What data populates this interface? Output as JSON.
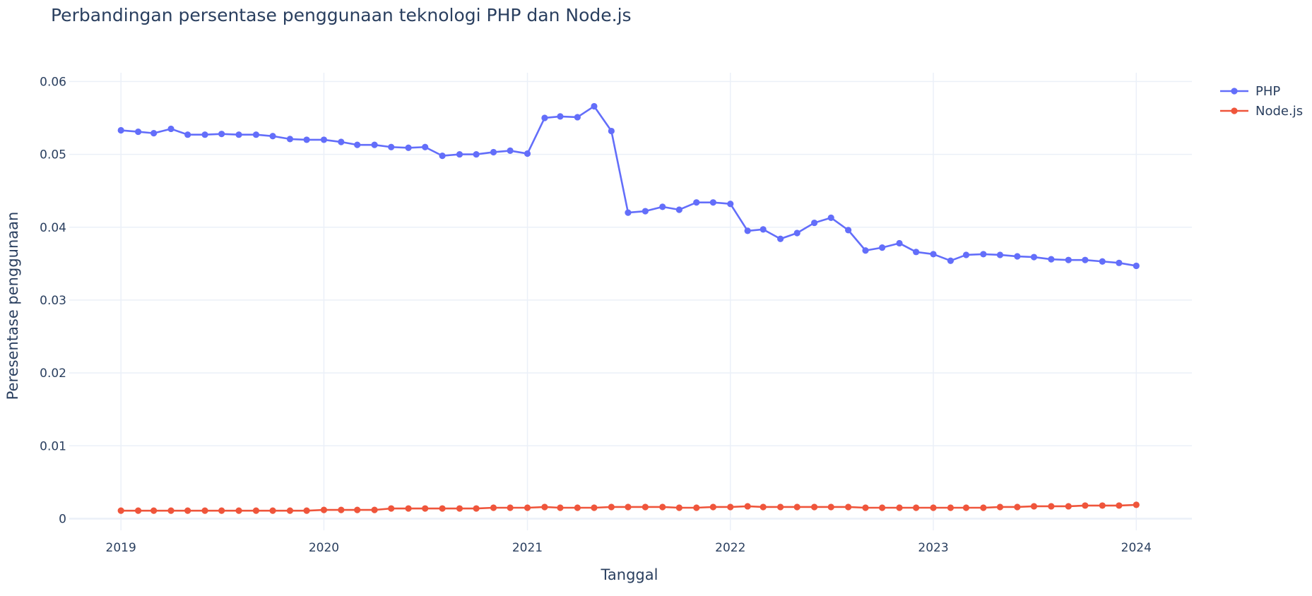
{
  "chart_data": {
    "type": "line",
    "title": "Perbandingan persentase penggunaan teknologi PHP dan Node.js",
    "xlabel": "Tanggal",
    "ylabel": "Peresentase penggunaan",
    "xlim": [
      "2018-09-30",
      "2024-04-10"
    ],
    "ylim": [
      -0.0016,
      0.0612
    ],
    "x_ticks": [
      "2019-01-01",
      "2020-01-01",
      "2021-01-01",
      "2022-01-01",
      "2023-01-01",
      "2024-01-01"
    ],
    "x_tick_labels": [
      "2019",
      "2020",
      "2021",
      "2022",
      "2023",
      "2024"
    ],
    "y_ticks": [
      0,
      0.01,
      0.02,
      0.03,
      0.04,
      0.05,
      0.06
    ],
    "y_tick_labels": [
      "0",
      "0.01",
      "0.02",
      "0.03",
      "0.04",
      "0.05",
      "0.06"
    ],
    "grid": true,
    "legend_position": "top-right",
    "x": [
      "2019-01-01",
      "2019-02-01",
      "2019-03-01",
      "2019-04-01",
      "2019-05-01",
      "2019-06-01",
      "2019-07-01",
      "2019-08-01",
      "2019-09-01",
      "2019-10-01",
      "2019-11-01",
      "2019-12-01",
      "2020-01-01",
      "2020-02-01",
      "2020-03-01",
      "2020-04-01",
      "2020-05-01",
      "2020-06-01",
      "2020-07-01",
      "2020-08-01",
      "2020-09-01",
      "2020-10-01",
      "2020-11-01",
      "2020-12-01",
      "2021-01-01",
      "2021-02-01",
      "2021-03-01",
      "2021-04-01",
      "2021-05-01",
      "2021-06-01",
      "2021-07-01",
      "2021-08-01",
      "2021-09-01",
      "2021-10-01",
      "2021-11-01",
      "2021-12-01",
      "2022-01-01",
      "2022-02-01",
      "2022-03-01",
      "2022-04-01",
      "2022-05-01",
      "2022-06-01",
      "2022-07-01",
      "2022-08-01",
      "2022-09-01",
      "2022-10-01",
      "2022-11-01",
      "2022-12-01",
      "2023-01-01",
      "2023-02-01",
      "2023-03-01",
      "2023-04-01",
      "2023-05-01",
      "2023-06-01",
      "2023-07-01",
      "2023-08-01",
      "2023-09-01",
      "2023-10-01",
      "2023-11-01",
      "2023-12-01",
      "2024-01-01"
    ],
    "series": [
      {
        "name": "PHP",
        "color": "#636efa",
        "values": [
          0.0533,
          0.0531,
          0.0529,
          0.0535,
          0.0527,
          0.0527,
          0.0528,
          0.0527,
          0.0527,
          0.0525,
          0.0521,
          0.052,
          0.052,
          0.0517,
          0.0513,
          0.0513,
          0.051,
          0.0509,
          0.051,
          0.0498,
          0.05,
          0.05,
          0.0503,
          0.0505,
          0.0501,
          0.055,
          0.0552,
          0.0551,
          0.0566,
          0.0532,
          0.042,
          0.0422,
          0.0428,
          0.0424,
          0.0434,
          0.0434,
          0.0432,
          0.0395,
          0.0397,
          0.0384,
          0.0392,
          0.0406,
          0.0413,
          0.0396,
          0.0368,
          0.0372,
          0.0378,
          0.0366,
          0.0363,
          0.0354,
          0.0362,
          0.0363,
          0.0362,
          0.036,
          0.0359,
          0.0356,
          0.0355,
          0.0355,
          0.0353,
          0.0351,
          0.0347
        ]
      },
      {
        "name": "Node.js",
        "color": "#ef553b",
        "values": [
          0.0011,
          0.0011,
          0.0011,
          0.0011,
          0.0011,
          0.0011,
          0.0011,
          0.0011,
          0.0011,
          0.0011,
          0.0011,
          0.0011,
          0.0012,
          0.0012,
          0.0012,
          0.0012,
          0.0014,
          0.0014,
          0.0014,
          0.0014,
          0.0014,
          0.0014,
          0.0015,
          0.0015,
          0.0015,
          0.0016,
          0.0015,
          0.0015,
          0.0015,
          0.0016,
          0.0016,
          0.0016,
          0.0016,
          0.0015,
          0.0015,
          0.0016,
          0.0016,
          0.0017,
          0.0016,
          0.0016,
          0.0016,
          0.0016,
          0.0016,
          0.0016,
          0.0015,
          0.0015,
          0.0015,
          0.0015,
          0.0015,
          0.0015,
          0.0015,
          0.0015,
          0.0016,
          0.0016,
          0.0017,
          0.0017,
          0.0017,
          0.0018,
          0.0018,
          0.0018,
          0.0019
        ]
      }
    ]
  }
}
